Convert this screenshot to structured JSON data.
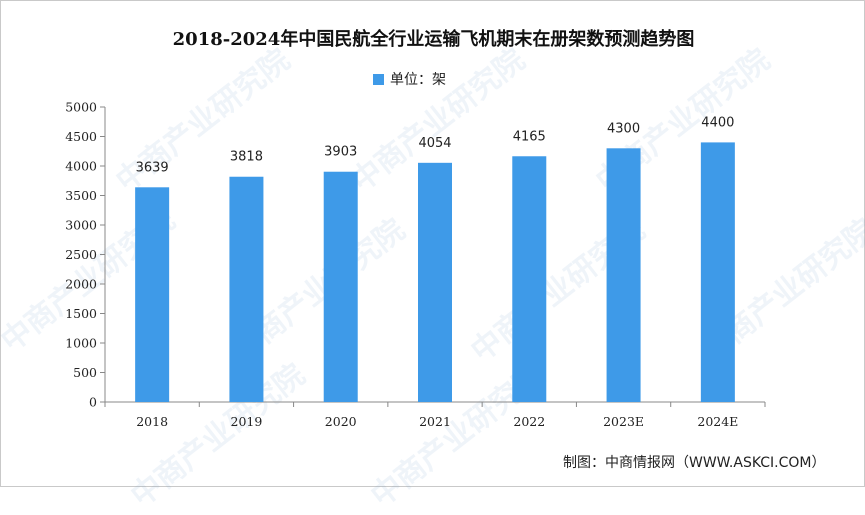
{
  "title": "2018-2024年中国民航全行业运输飞机期末在册架数预测趋势图",
  "source": "制图：中商情报网（WWW.ASKCI.COM）",
  "watermark": "中商产业研究院",
  "colors": {
    "bar": "#3e9ae8",
    "axis": "#888888"
  },
  "chart_data": {
    "type": "bar",
    "categories": [
      "2018",
      "2019",
      "2020",
      "2021",
      "2022",
      "2023E",
      "2024E"
    ],
    "series": [
      {
        "name": "单位：架",
        "values": [
          3639,
          3818,
          3903,
          4054,
          4165,
          4300,
          4400
        ]
      }
    ],
    "ylim": [
      0,
      5000
    ],
    "yticks": [
      0,
      500,
      1000,
      1500,
      2000,
      2500,
      3000,
      3500,
      4000,
      4500,
      5000
    ],
    "legend": "top-center",
    "grid": false
  }
}
